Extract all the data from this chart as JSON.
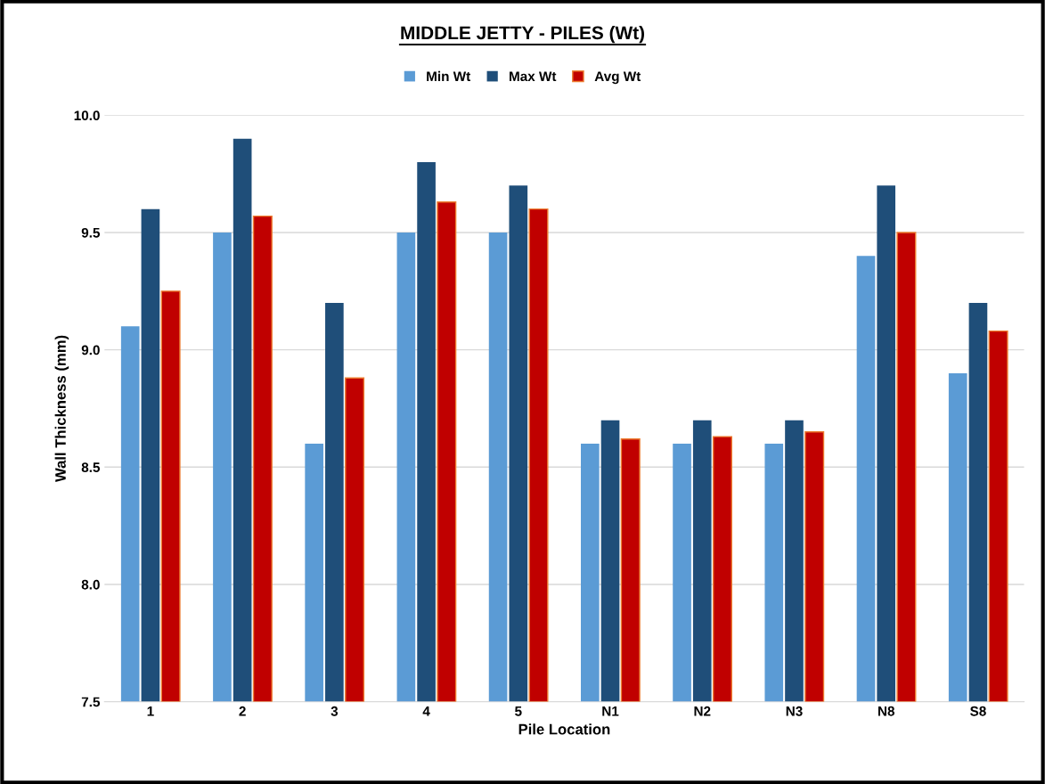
{
  "chart_data": {
    "type": "bar",
    "title": "MIDDLE JETTY - PILES (Wt)",
    "xlabel": "Pile Location",
    "ylabel": "Wall Thickness (mm)",
    "categories": [
      "1",
      "2",
      "3",
      "4",
      "5",
      "N1",
      "N2",
      "N3",
      "N8",
      "S8"
    ],
    "series": [
      {
        "name": "Min Wt",
        "color": "#5b9bd5",
        "values": [
          9.1,
          9.5,
          8.6,
          9.5,
          9.5,
          8.6,
          8.6,
          8.6,
          9.4,
          8.9
        ]
      },
      {
        "name": "Max Wt",
        "color": "#1f4e79",
        "values": [
          9.6,
          9.9,
          9.2,
          9.8,
          9.7,
          8.7,
          8.7,
          8.7,
          9.7,
          9.2
        ]
      },
      {
        "name": "Avg Wt",
        "color": "#c00000",
        "values": [
          9.25,
          9.57,
          8.88,
          9.63,
          9.6,
          8.62,
          8.63,
          8.65,
          9.5,
          9.08
        ]
      }
    ],
    "ylim": [
      7.5,
      10.0
    ],
    "yticks": [
      {
        "value": 7.5,
        "label": "7.5"
      },
      {
        "value": 8.0,
        "label": "8.0"
      },
      {
        "value": 8.5,
        "label": "8.5"
      },
      {
        "value": 9.0,
        "label": "9.0"
      },
      {
        "value": 9.5,
        "label": "9.5"
      },
      {
        "value": 10.0,
        "label": "10.0"
      }
    ],
    "grid": "y",
    "legend": "top"
  }
}
